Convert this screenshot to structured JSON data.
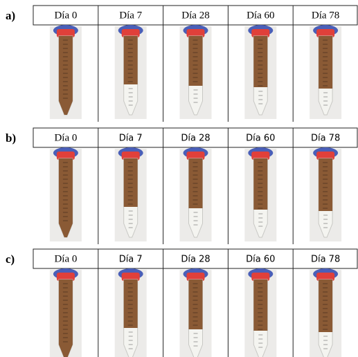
{
  "panels": [
    {
      "label": "a)",
      "headers": [
        "Día 0",
        "Día 7",
        "Día 28",
        "Día 60",
        "Día 78"
      ]
    },
    {
      "label": "b)",
      "headers": [
        "Día 0",
        "Día 7",
        "Día 28",
        "Día 60",
        "Día 78"
      ]
    },
    {
      "label": "c)",
      "headers": [
        "Día 0",
        "Día 7",
        "Día 28",
        "Día 60",
        "Día 78"
      ]
    }
  ]
}
